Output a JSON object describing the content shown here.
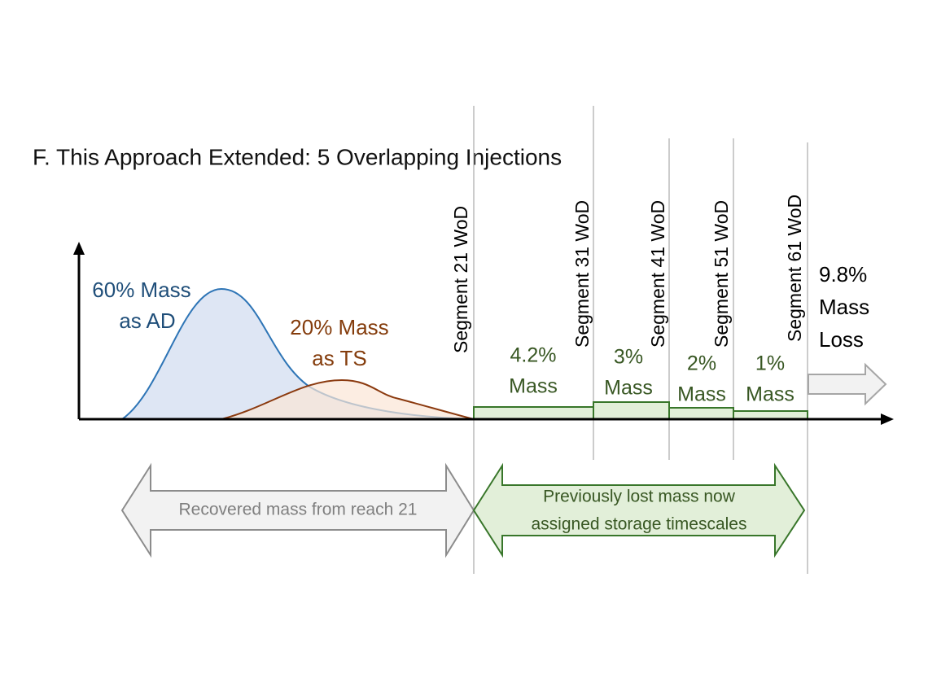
{
  "header": {
    "title": "F. This Approach Extended: 5 Overlapping Injections"
  },
  "curves": [
    {
      "label_lines": [
        "60% Mass",
        "as AD"
      ]
    },
    {
      "label_lines": [
        "20% Mass",
        "as TS"
      ]
    }
  ],
  "segments": [
    "Segment  21 WoD",
    "Segment 31 WoD",
    "Segment 41 WoD",
    "Segment 51 WoD",
    "Segment 61 WoD"
  ],
  "masses": [
    {
      "lines": [
        "4.2%",
        "Mass"
      ]
    },
    {
      "lines": [
        "3%",
        "Mass"
      ]
    },
    {
      "lines": [
        "2%",
        "Mass"
      ]
    },
    {
      "lines": [
        "1%",
        "Mass"
      ]
    }
  ],
  "loss": {
    "lines": [
      "9.8%",
      "Mass",
      "Loss"
    ]
  },
  "arrows": {
    "recovered": "Recovered mass from reach 21",
    "previous_lines": [
      "Previously lost mass now",
      "assigned storage timescales"
    ]
  }
}
